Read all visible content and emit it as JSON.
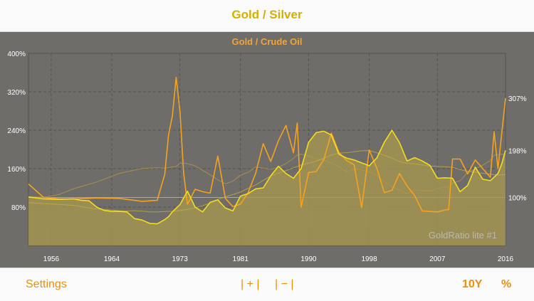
{
  "header": {
    "title": "Gold / Silver"
  },
  "chart_data": {
    "type": "line",
    "title": "Gold / Crude Oil",
    "watermark": "GoldRatio lite #1",
    "xlim": [
      1953,
      2016
    ],
    "ylim": [
      0,
      400
    ],
    "y_ticks": [
      "80%",
      "160%",
      "240%",
      "320%",
      "400%"
    ],
    "y_tick_values": [
      80,
      160,
      240,
      320,
      400
    ],
    "x_ticks": [
      "1956",
      "1964",
      "1973",
      "1981",
      "1990",
      "1998",
      "2007",
      "2016"
    ],
    "x_tick_values": [
      1956,
      1964,
      1973,
      1981,
      1990,
      1998,
      2007,
      2016
    ],
    "grid": true,
    "right_labels": [
      {
        "text": "307%",
        "value": 307
      },
      {
        "text": "198%",
        "value": 198
      },
      {
        "text": "100%",
        "value": 100
      }
    ],
    "colors": {
      "background": "#6f6d69",
      "grid": "#55534f",
      "gold_silver": "#f5dc1e",
      "gold_oil": "#f5a31e",
      "gold_oil_ma": "#b89646",
      "gold_silver_ma": "#c8ab3c",
      "fill": "#a89a4e",
      "text": "#ffffff",
      "title": "#f0a53c",
      "watermark": "#bdb9ad"
    },
    "series": [
      {
        "role": "gold_silver",
        "points": [
          [
            1953,
            101
          ],
          [
            1955,
            97
          ],
          [
            1957,
            96
          ],
          [
            1959,
            97
          ],
          [
            1960,
            94
          ],
          [
            1961,
            93
          ],
          [
            1962,
            80
          ],
          [
            1963,
            73
          ],
          [
            1964,
            71
          ],
          [
            1965,
            71
          ],
          [
            1966,
            70
          ],
          [
            1967,
            56
          ],
          [
            1968,
            53
          ],
          [
            1969,
            46
          ],
          [
            1970,
            45
          ],
          [
            1971,
            54
          ],
          [
            1971.5,
            60
          ],
          [
            1972,
            70
          ],
          [
            1973,
            85
          ],
          [
            1974,
            113
          ],
          [
            1975,
            80
          ],
          [
            1976,
            70
          ],
          [
            1977,
            90
          ],
          [
            1978,
            95
          ],
          [
            1979,
            78
          ],
          [
            1980,
            72
          ],
          [
            1981,
            103
          ],
          [
            1982,
            108
          ],
          [
            1983,
            118
          ],
          [
            1984,
            120
          ],
          [
            1985,
            145
          ],
          [
            1986,
            165
          ],
          [
            1987,
            150
          ],
          [
            1988,
            140
          ],
          [
            1989,
            160
          ],
          [
            1990,
            215
          ],
          [
            1991,
            235
          ],
          [
            1992,
            238
          ],
          [
            1993,
            230
          ],
          [
            1994,
            190
          ],
          [
            1995,
            182
          ],
          [
            1996,
            178
          ],
          [
            1997,
            172
          ],
          [
            1998,
            166
          ],
          [
            1999,
            182
          ],
          [
            2000,
            215
          ],
          [
            2001,
            240
          ],
          [
            2002,
            214
          ],
          [
            2003,
            176
          ],
          [
            2004,
            183
          ],
          [
            2005,
            176
          ],
          [
            2006,
            167
          ],
          [
            2007,
            140
          ],
          [
            2008,
            141
          ],
          [
            2009,
            140
          ],
          [
            2010,
            112
          ],
          [
            2011,
            125
          ],
          [
            2012,
            163
          ],
          [
            2013,
            138
          ],
          [
            2014,
            135
          ],
          [
            2015,
            150
          ],
          [
            2015.5,
            170
          ],
          [
            2016,
            198
          ]
        ]
      },
      {
        "role": "gold_oil",
        "points": [
          [
            1953,
            128
          ],
          [
            1955,
            100
          ],
          [
            1957,
            97
          ],
          [
            1959,
            97
          ],
          [
            1962,
            99
          ],
          [
            1965,
            98
          ],
          [
            1968,
            92
          ],
          [
            1970,
            94
          ],
          [
            1971,
            148
          ],
          [
            1971.5,
            230
          ],
          [
            1972,
            270
          ],
          [
            1972.5,
            350
          ],
          [
            1973,
            280
          ],
          [
            1973.5,
            150
          ],
          [
            1974,
            86
          ],
          [
            1975,
            117
          ],
          [
            1976,
            112
          ],
          [
            1977,
            109
          ],
          [
            1978,
            186
          ],
          [
            1979,
            98
          ],
          [
            1980,
            81
          ],
          [
            1981,
            86
          ],
          [
            1982,
            110
          ],
          [
            1983,
            150
          ],
          [
            1984,
            212
          ],
          [
            1985,
            175
          ],
          [
            1986,
            218
          ],
          [
            1987,
            250
          ],
          [
            1988,
            193
          ],
          [
            1988.5,
            255
          ],
          [
            1989,
            80
          ],
          [
            1990,
            152
          ],
          [
            1991,
            154
          ],
          [
            1992,
            179
          ],
          [
            1993,
            234
          ],
          [
            1994,
            194
          ],
          [
            1995,
            177
          ],
          [
            1996,
            168
          ],
          [
            1997,
            79
          ],
          [
            1998,
            199
          ],
          [
            1999,
            161
          ],
          [
            2000,
            110
          ],
          [
            2001,
            115
          ],
          [
            2002,
            150
          ],
          [
            2003,
            124
          ],
          [
            2004,
            104
          ],
          [
            2005,
            72
          ],
          [
            2006,
            71
          ],
          [
            2007,
            70
          ],
          [
            2008,
            74
          ],
          [
            2008.5,
            75
          ],
          [
            2009,
            180
          ],
          [
            2010,
            180
          ],
          [
            2011,
            149
          ],
          [
            2012,
            178
          ],
          [
            2013,
            160
          ],
          [
            2014,
            142
          ],
          [
            2014.5,
            237
          ],
          [
            2015,
            160
          ],
          [
            2016,
            307
          ]
        ]
      }
    ]
  },
  "footer": {
    "settings": "Settings",
    "zoom_in": "| + |",
    "zoom_out": "| − |",
    "range": "10Y",
    "percent": "%"
  }
}
